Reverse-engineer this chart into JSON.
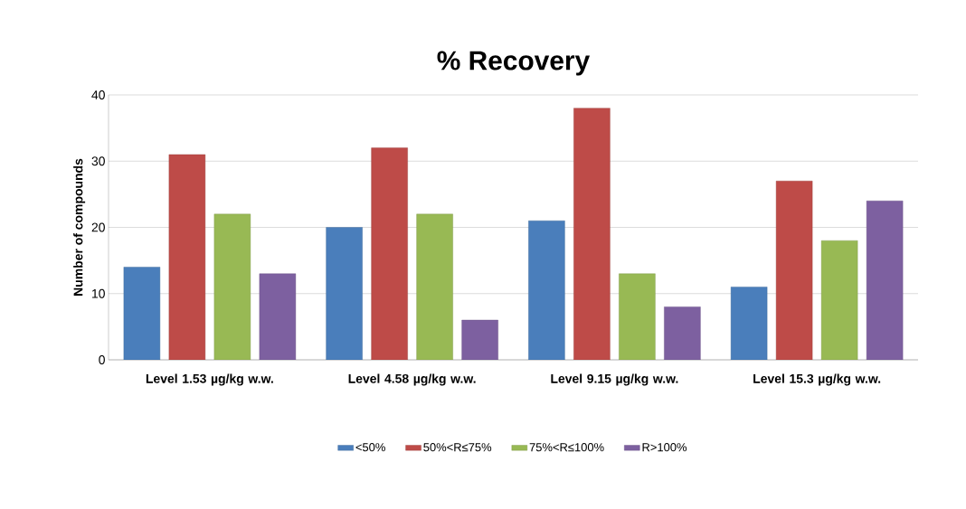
{
  "chart_data": {
    "type": "bar",
    "title": "% Recovery",
    "ylabel": "Number of compounds",
    "categories": [
      "Level 1.53 µg/kg w.w.",
      "Level 4.58 µg/kg w.w.",
      "Level 9.15 µg/kg w.w.",
      "Level 15.3 µg/kg w.w."
    ],
    "series": [
      {
        "name": "<50%",
        "color": "#4a7ebb",
        "values": [
          14,
          20,
          21,
          11
        ]
      },
      {
        "name": "50%<R≤75%",
        "color": "#be4b48",
        "values": [
          31,
          32,
          38,
          27
        ]
      },
      {
        "name": "75%<R≤100%",
        "color": "#98b954",
        "values": [
          22,
          22,
          13,
          18
        ]
      },
      {
        "name": "R>100%",
        "color": "#7d60a0",
        "values": [
          13,
          6,
          8,
          24
        ]
      }
    ],
    "ylim": [
      0,
      40
    ],
    "yticks": [
      0,
      10,
      20,
      30,
      40
    ],
    "grid": "y",
    "legend": "bottom"
  }
}
